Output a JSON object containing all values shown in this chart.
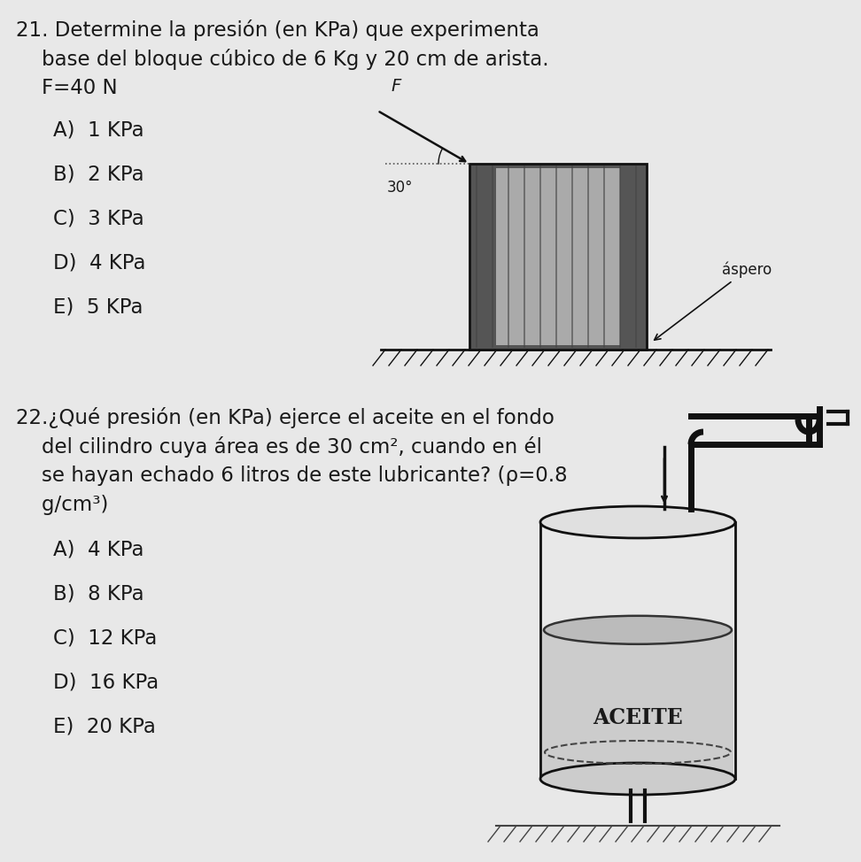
{
  "bg_color": "#e8e8e8",
  "text_color": "#1a1a1a",
  "q21_line1": "21. Determine la presión (en KPa) que experimenta",
  "q21_line2": "    base del bloque cúbico de 6 Kg y 20 cm de arista.",
  "q21_line3": "    F=40 N",
  "q21_options": [
    "A)  1 KPa",
    "B)  2 KPa",
    "C)  3 KPa",
    "D)  4 KPa",
    "E)  5 KPa"
  ],
  "q22_line1": "22.¿Qué presión (en KPa) ejerce el aceite en el fondo",
  "q22_line2": "    del cilindro cuya área es de 30 cm², cuando en él",
  "q22_line3": "    se hayan echado 6 litros de este lubricante? (ρ=0.8",
  "q22_line4": "    g/cm³)",
  "q22_options": [
    "A)  4 KPa",
    "B)  8 KPa",
    "C)  12 KPa",
    "D)  16 KPa",
    "E)  20 KPa"
  ],
  "aspero_label": "áspero",
  "aceite_label": "ACEITE",
  "angle_label": "30°",
  "force_label": "F"
}
